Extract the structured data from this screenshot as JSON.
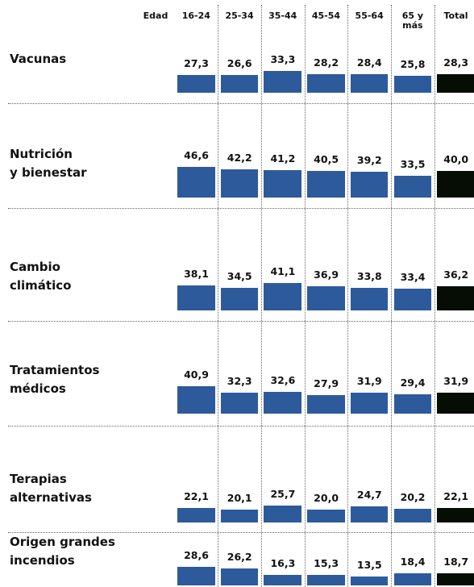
{
  "chart_data": {
    "type": "bar",
    "column_header": "Edad",
    "columns": [
      "16-24",
      "25-34",
      "35-44",
      "45-54",
      "55-64",
      "65 y\nmás",
      "Total"
    ],
    "colors": [
      "#2d5a9b",
      "#2d5a9b",
      "#2d5a9b",
      "#2d5a9b",
      "#2d5a9b",
      "#2d5a9b",
      "#050d05"
    ],
    "rows": [
      {
        "name": "Vacunas",
        "values": [
          27.3,
          26.6,
          33.3,
          28.2,
          28.4,
          25.8,
          28.3
        ],
        "value_labels": [
          "27,3",
          "26,6",
          "33,3",
          "28,2",
          "28,4",
          "25,8",
          "28,3"
        ]
      },
      {
        "name": "Nutrición\ny bienestar",
        "values": [
          46.6,
          42.2,
          41.2,
          40.5,
          39.2,
          33.5,
          40.0
        ],
        "value_labels": [
          "46,6",
          "42,2",
          "41,2",
          "40,5",
          "39,2",
          "33,5",
          "40,0"
        ]
      },
      {
        "name": "Cambio\nclimático",
        "values": [
          38.1,
          34.5,
          41.1,
          36.9,
          33.8,
          33.4,
          36.2
        ],
        "value_labels": [
          "38,1",
          "34,5",
          "41,1",
          "36,9",
          "33,8",
          "33,4",
          "36,2"
        ]
      },
      {
        "name": "Tratamientos\nmédicos",
        "values": [
          40.9,
          32.3,
          32.6,
          27.9,
          31.9,
          29.4,
          31.9
        ],
        "value_labels": [
          "40,9",
          "32,3",
          "32,6",
          "27,9",
          "31,9",
          "29,4",
          "31,9"
        ]
      },
      {
        "name": "Terapias\nalternativas",
        "values": [
          22.1,
          20.1,
          25.7,
          20.0,
          24.7,
          20.2,
          22.1
        ],
        "value_labels": [
          "22,1",
          "20,1",
          "25,7",
          "20,0",
          "24,7",
          "20,2",
          "22,1"
        ]
      },
      {
        "name": "Origen grandes\nincendios",
        "values": [
          28.6,
          26.2,
          16.3,
          15.3,
          13.5,
          18.4,
          18.7
        ],
        "value_labels": [
          "28,6",
          "26,2",
          "16,3",
          "15,3",
          "13,5",
          "18,4",
          "18,7"
        ]
      }
    ]
  }
}
